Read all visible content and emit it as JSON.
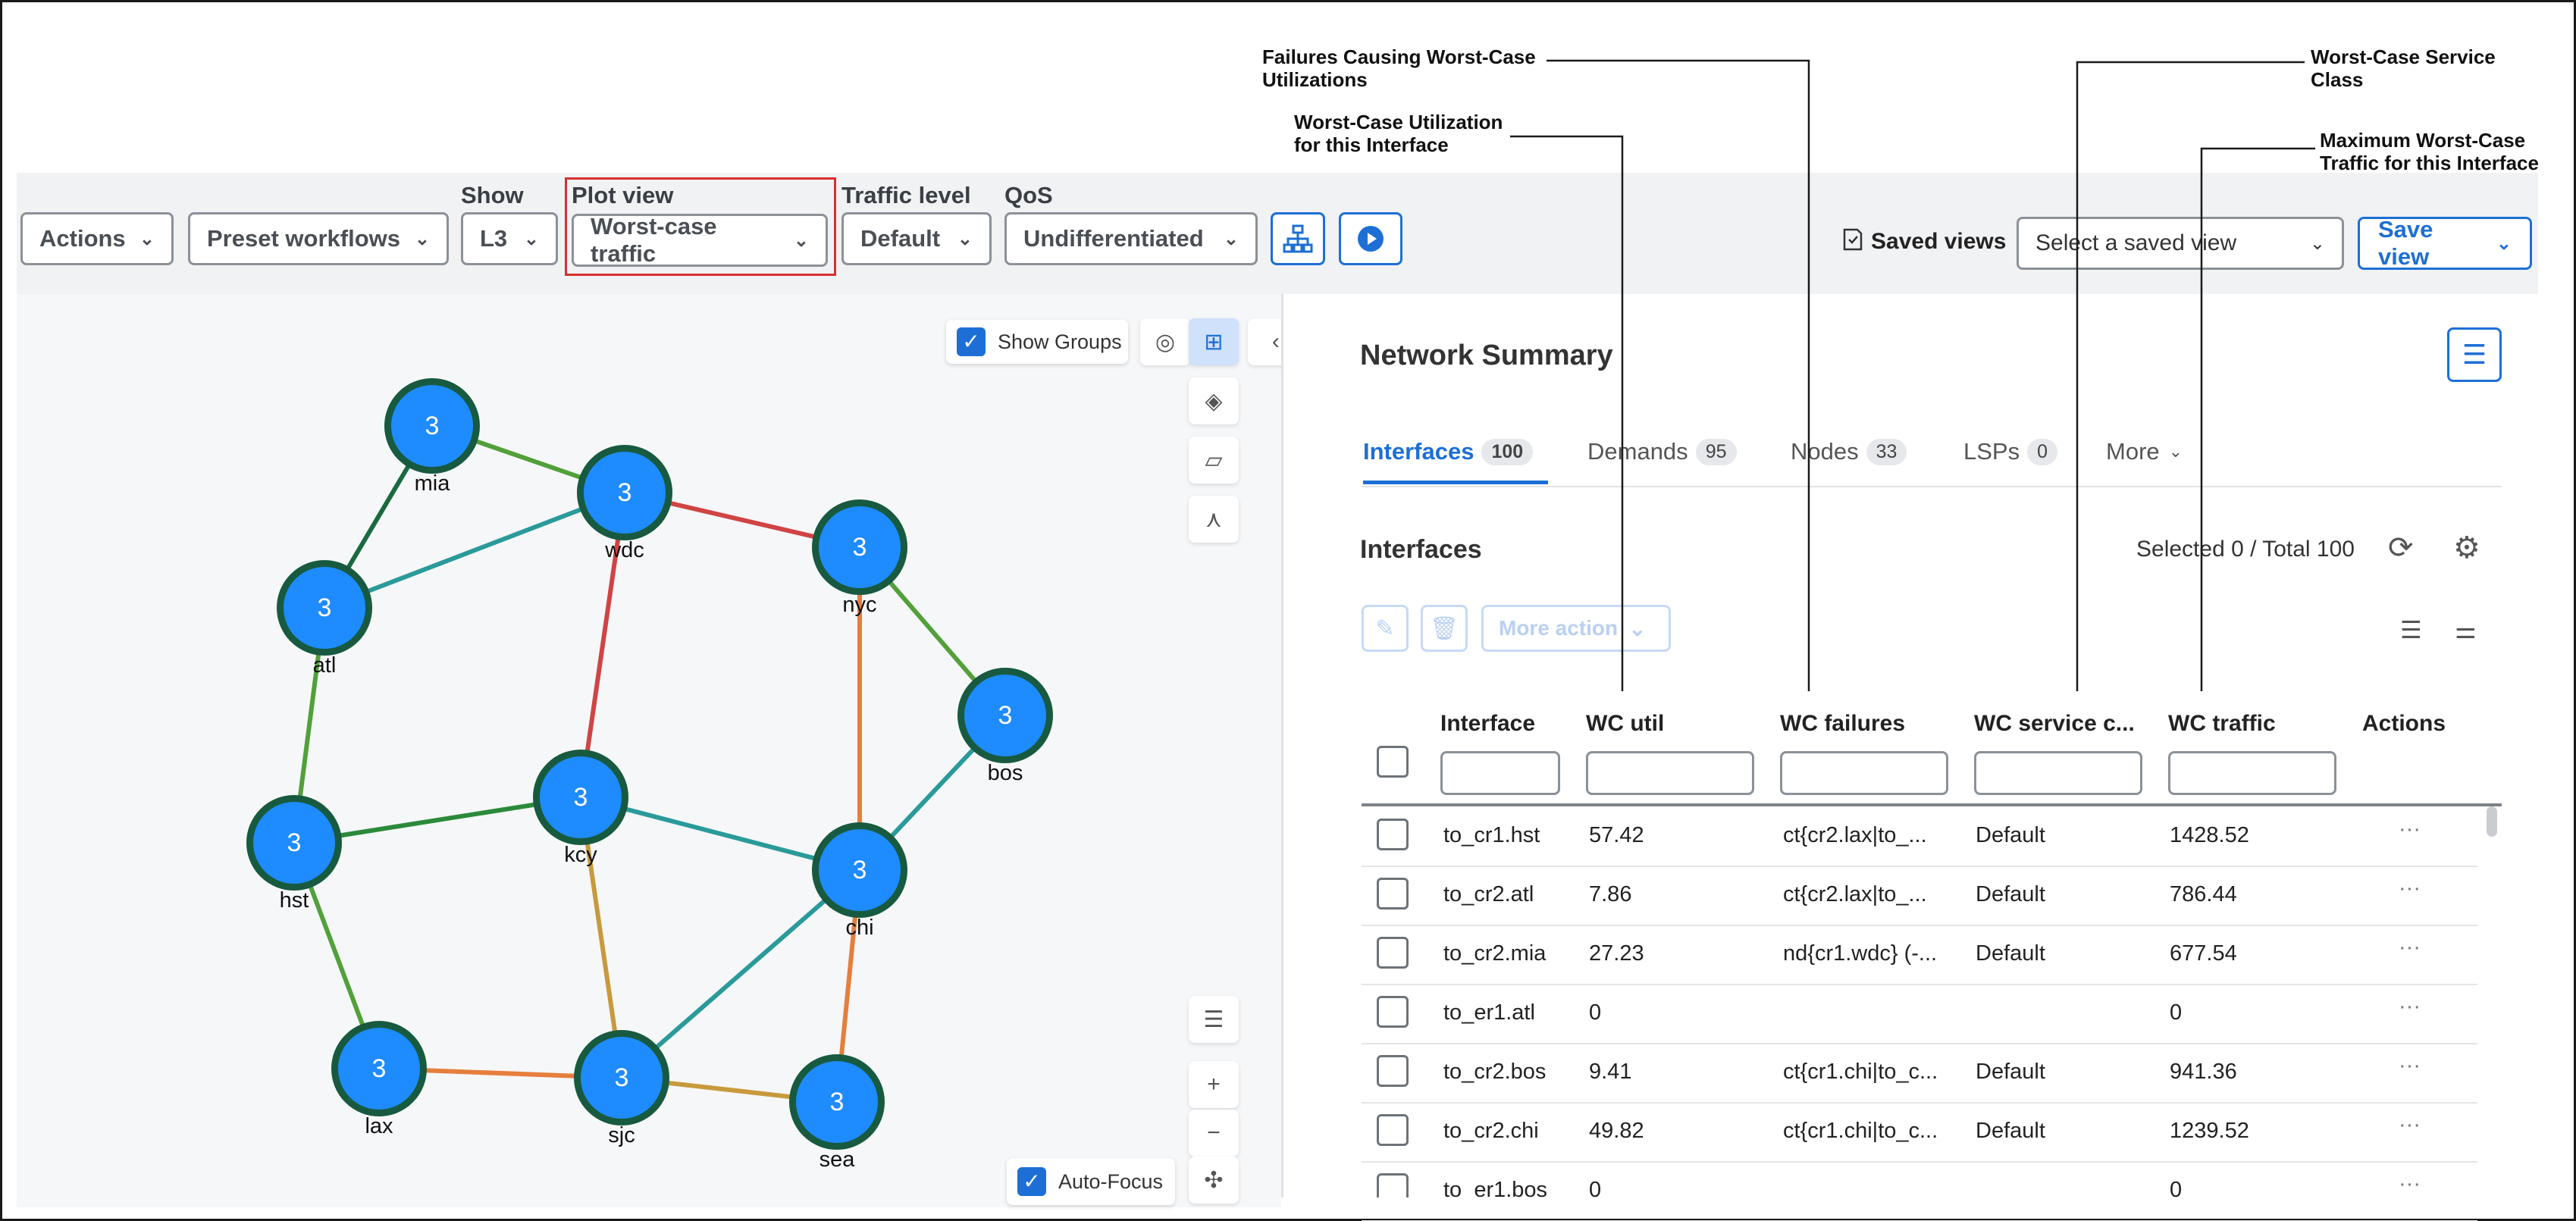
{
  "annotations": {
    "failures": "Failures Causing Worst-Case\nUtilizations",
    "wc_util": "Worst-Case Utilization\nfor this Interface",
    "service_class": "Worst-Case Service\nClass",
    "max_traffic": "Maximum Worst-Case\nTraffic for this Interface"
  },
  "toolbar": {
    "actions": "Actions",
    "preset": "Preset workflows",
    "show_label": "Show",
    "show_value": "L3",
    "plot_label": "Plot view",
    "plot_value": "Worst-case traffic",
    "traffic_label": "Traffic level",
    "traffic_value": "Default",
    "qos_label": "QoS",
    "qos_value": "Undifferentiated",
    "saved_views_label": "Saved views",
    "saved_views_placeholder": "Select a saved view",
    "save_view": "Save view"
  },
  "map": {
    "show_groups": "Show Groups",
    "auto_focus": "Auto-Focus",
    "nodes": [
      {
        "name": "mia",
        "count": "3"
      },
      {
        "name": "wdc",
        "count": "3"
      },
      {
        "name": "atl",
        "count": "3"
      },
      {
        "name": "nyc",
        "count": "3"
      },
      {
        "name": "bos",
        "count": "3"
      },
      {
        "name": "kcy",
        "count": "3"
      },
      {
        "name": "hst",
        "count": "3"
      },
      {
        "name": "chi",
        "count": "3"
      },
      {
        "name": "lax",
        "count": "3"
      },
      {
        "name": "sjc",
        "count": "3"
      },
      {
        "name": "sea",
        "count": "3"
      }
    ]
  },
  "summary": {
    "title": "Network Summary",
    "tabs": [
      {
        "label": "Interfaces",
        "count": "100"
      },
      {
        "label": "Demands",
        "count": "95"
      },
      {
        "label": "Nodes",
        "count": "33"
      },
      {
        "label": "LSPs",
        "count": "0"
      },
      {
        "label": "More",
        "count": ""
      }
    ],
    "section_title": "Interfaces",
    "selected_total": "Selected 0 / Total 100",
    "more_action": "More action",
    "columns": [
      "Interface",
      "WC util",
      "WC failures",
      "WC service c...",
      "WC traffic",
      "Actions"
    ],
    "rows": [
      {
        "interface": "to_cr1.hst",
        "util": "57.42",
        "failures": "ct{cr2.lax|to_...",
        "service": "Default",
        "traffic": "1428.52"
      },
      {
        "interface": "to_cr2.atl",
        "util": "7.86",
        "failures": "ct{cr2.lax|to_...",
        "service": "Default",
        "traffic": "786.44"
      },
      {
        "interface": "to_cr2.mia",
        "util": "27.23",
        "failures": "nd{cr1.wdc} (-...",
        "service": "Default",
        "traffic": "677.54"
      },
      {
        "interface": "to_er1.atl",
        "util": "0",
        "failures": "",
        "service": "",
        "traffic": "0"
      },
      {
        "interface": "to_cr2.bos",
        "util": "9.41",
        "failures": "ct{cr1.chi|to_c...",
        "service": "Default",
        "traffic": "941.36"
      },
      {
        "interface": "to_cr2.chi",
        "util": "49.82",
        "failures": "ct{cr1.chi|to_c...",
        "service": "Default",
        "traffic": "1239.52"
      },
      {
        "interface": "to_er1.bos",
        "util": "0",
        "failures": "",
        "service": "",
        "traffic": "0"
      }
    ]
  },
  "colors": {
    "accent": "#1d6fd6",
    "node_fill": "#1e8bff",
    "node_ring": "#175a3f",
    "highlight": "#d93030"
  }
}
